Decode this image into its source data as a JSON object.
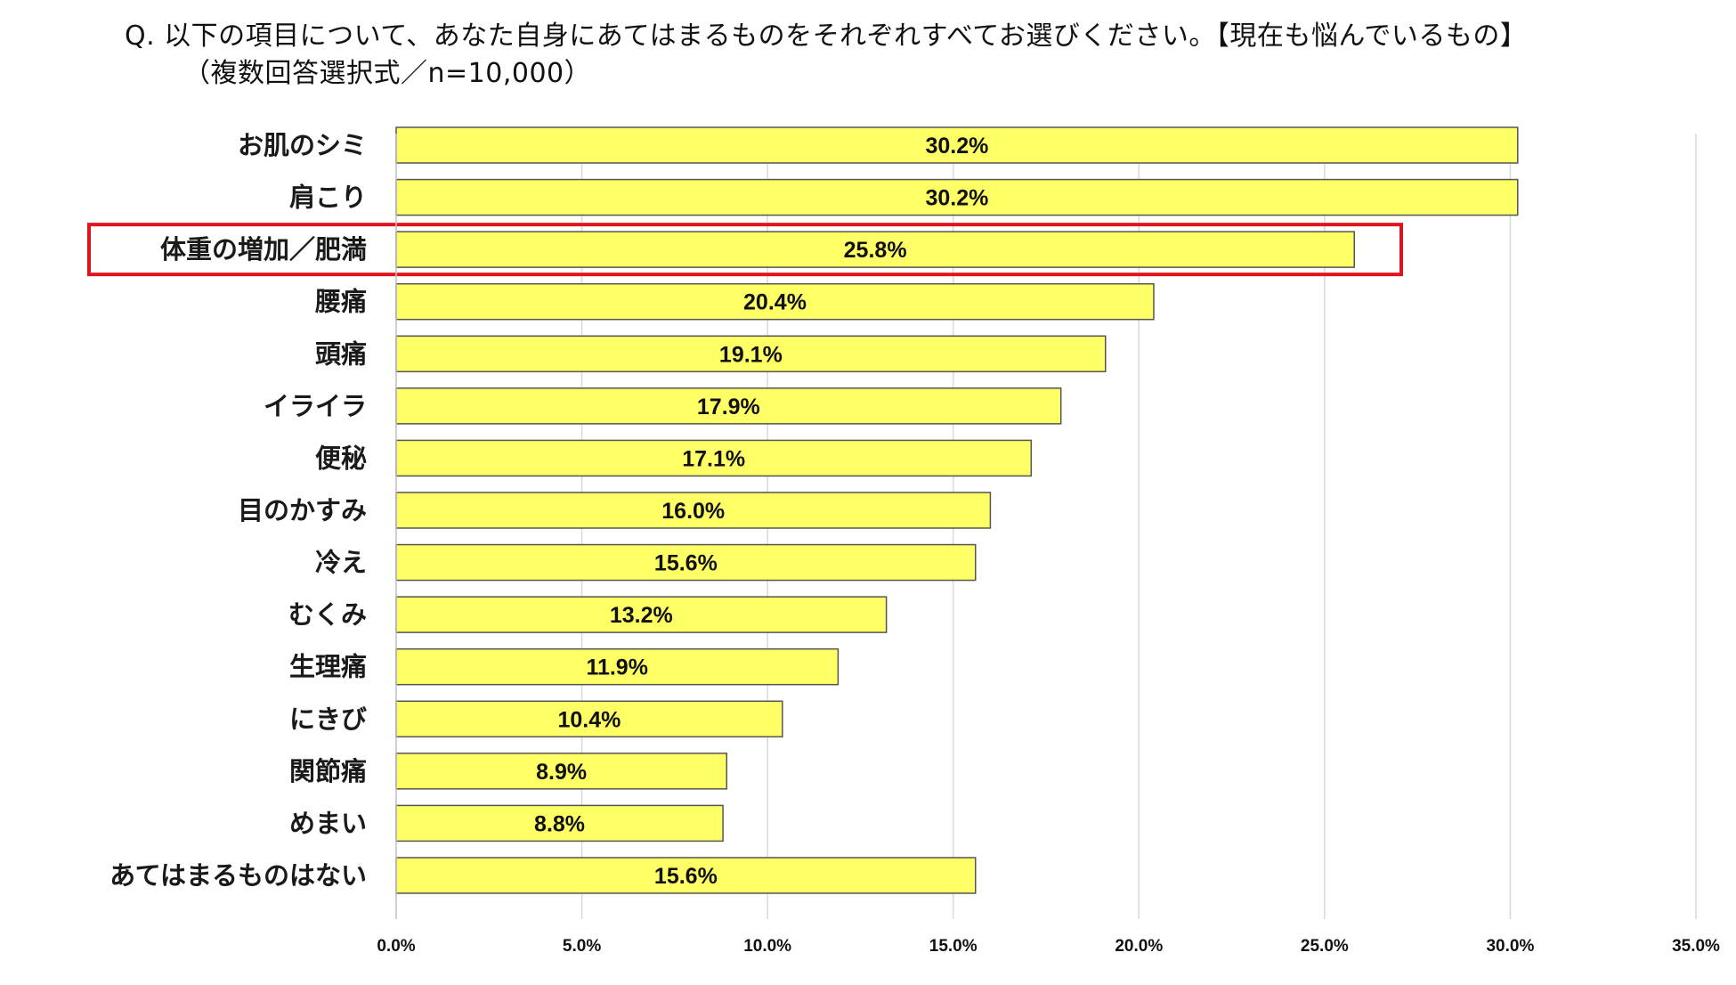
{
  "title": {
    "line1": "Q. 以下の項目について、あなた自身にあてはまるものをそれぞれすべてお選びください。【現在も悩んでいるもの】",
    "line2": "（複数回答選択式／n=10,000）"
  },
  "colors": {
    "bar": "#ffff66",
    "bar_stroke": "#555555",
    "highlight": "#e0141e",
    "grid": "#d9d9d9"
  },
  "chart_data": {
    "type": "bar",
    "orientation": "horizontal",
    "categories": [
      "お肌のシミ",
      "肩こり",
      "体重の増加／肥満",
      "腰痛",
      "頭痛",
      "イライラ",
      "便秘",
      "目のかすみ",
      "冷え",
      "むくみ",
      "生理痛",
      "にきび",
      "関節痛",
      "めまい",
      "あてはまるものはない"
    ],
    "values": [
      30.2,
      30.2,
      25.8,
      20.4,
      19.1,
      17.9,
      17.1,
      16.0,
      15.6,
      13.2,
      11.9,
      10.4,
      8.9,
      8.8,
      15.6
    ],
    "value_labels": [
      "30.2%",
      "30.2%",
      "25.8%",
      "20.4%",
      "19.1%",
      "17.9%",
      "17.1%",
      "16.0%",
      "15.6%",
      "13.2%",
      "11.9%",
      "10.4%",
      "8.9%",
      "8.8%",
      "15.6%"
    ],
    "xlim": [
      0,
      35
    ],
    "x_ticks": [
      0,
      5,
      10,
      15,
      20,
      25,
      30,
      35
    ],
    "x_tick_labels": [
      "0.0%",
      "5.0%",
      "10.0%",
      "15.0%",
      "20.0%",
      "25.0%",
      "30.0%",
      "35.0%"
    ],
    "highlighted_category": "体重の増加／肥満",
    "grid": true
  }
}
